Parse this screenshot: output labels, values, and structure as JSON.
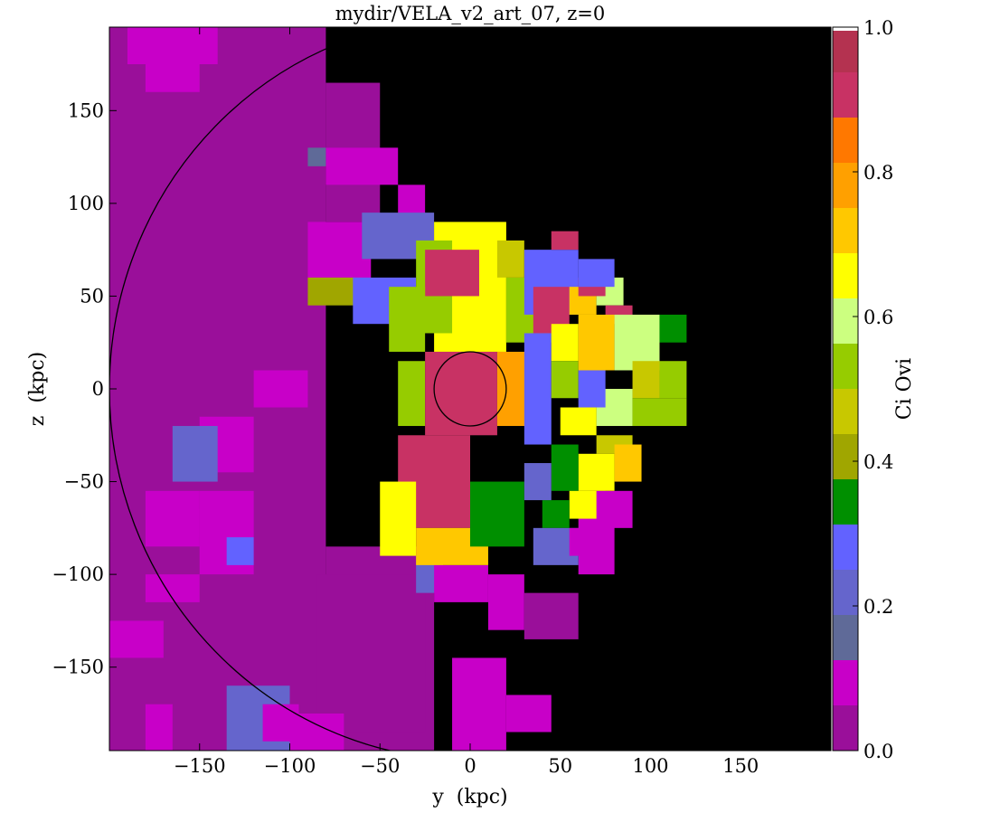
{
  "chart_data": {
    "type": "heatmap",
    "title": "mydir/VELA_v2_art_07, z=0",
    "xlabel": "y  (kpc)",
    "ylabel": "z  (kpc)",
    "xlim": [
      -200,
      200
    ],
    "ylim": [
      -195,
      195
    ],
    "xticks": [
      -150,
      -100,
      -50,
      0,
      50,
      100,
      150
    ],
    "yticks": [
      -150,
      -100,
      -50,
      0,
      50,
      100,
      150
    ],
    "grid": false,
    "colorbar": {
      "label": "Ci Ovi",
      "range": [
        0.0,
        1.0
      ],
      "ticks": [
        "0.0",
        "0.2",
        "0.4",
        "0.6",
        "0.8",
        "1.0"
      ],
      "tick_values": [
        0.0,
        0.2,
        0.4,
        0.6,
        0.8,
        1.0
      ],
      "bins": [
        {
          "lo": 0.0,
          "hi": 0.0625,
          "color": "#9a0f9a"
        },
        {
          "lo": 0.0625,
          "hi": 0.125,
          "color": "#c800c8"
        },
        {
          "lo": 0.125,
          "hi": 0.1875,
          "color": "#5f6a98"
        },
        {
          "lo": 0.1875,
          "hi": 0.25,
          "color": "#6565cc"
        },
        {
          "lo": 0.25,
          "hi": 0.3125,
          "color": "#6262ff"
        },
        {
          "lo": 0.3125,
          "hi": 0.375,
          "color": "#008f00"
        },
        {
          "lo": 0.375,
          "hi": 0.4375,
          "color": "#a0a600"
        },
        {
          "lo": 0.4375,
          "hi": 0.5,
          "color": "#c8c800"
        },
        {
          "lo": 0.5,
          "hi": 0.5625,
          "color": "#96cc00"
        },
        {
          "lo": 0.5625,
          "hi": 0.625,
          "color": "#ccff80"
        },
        {
          "lo": 0.625,
          "hi": 0.6875,
          "color": "#ffff00"
        },
        {
          "lo": 0.6875,
          "hi": 0.75,
          "color": "#ffc800"
        },
        {
          "lo": 0.75,
          "hi": 0.8125,
          "color": "#ffa000"
        },
        {
          "lo": 0.8125,
          "hi": 0.875,
          "color": "#ff7800"
        },
        {
          "lo": 0.875,
          "hi": 0.9375,
          "color": "#c83264"
        },
        {
          "lo": 0.9375,
          "hi": 0.995,
          "color": "#b43250"
        },
        {
          "lo": 0.995,
          "hi": 1.0,
          "color": "#ffffff"
        }
      ]
    },
    "background_color": "#000000",
    "circles": [
      {
        "center": [
          0,
          0
        ],
        "radius_kpc": 200,
        "color": "#000000"
      },
      {
        "center": [
          0,
          0
        ],
        "radius_kpc": 20,
        "color": "#000000"
      }
    ],
    "regions": [
      {
        "x0": -200,
        "x1": -80,
        "y0": -195,
        "y1": 195,
        "value": 0.03
      },
      {
        "x0": -80,
        "x1": -50,
        "y0": 90,
        "y1": 165,
        "value": 0.03
      },
      {
        "x0": -80,
        "x1": -20,
        "y0": -195,
        "y1": -85,
        "value": 0.03
      },
      {
        "x0": -85,
        "x1": -25,
        "y0": -185,
        "y1": -100,
        "value": 0.03
      },
      {
        "x0": -190,
        "x1": -140,
        "y0": 175,
        "y1": 195,
        "value": 0.09
      },
      {
        "x0": -180,
        "x1": -150,
        "y0": 160,
        "y1": 180,
        "value": 0.09
      },
      {
        "x0": -150,
        "x1": -120,
        "y0": -65,
        "y1": -80,
        "value": 0.09
      },
      {
        "x0": -80,
        "x1": -40,
        "y0": 110,
        "y1": 130,
        "value": 0.09
      },
      {
        "x0": -40,
        "x1": -25,
        "y0": 85,
        "y1": 110,
        "value": 0.09
      },
      {
        "x0": -90,
        "x1": -55,
        "y0": 50,
        "y1": 90,
        "value": 0.09
      },
      {
        "x0": -150,
        "x1": -120,
        "y0": -15,
        "y1": -45,
        "value": 0.09
      },
      {
        "x0": -150,
        "x1": -120,
        "y0": -55,
        "y1": -100,
        "value": 0.09
      },
      {
        "x0": -120,
        "x1": -90,
        "y0": -10,
        "y1": 10,
        "value": 0.09
      },
      {
        "x0": -180,
        "x1": -150,
        "y0": -100,
        "y1": -115,
        "value": 0.09
      },
      {
        "x0": -180,
        "x1": -165,
        "y0": -170,
        "y1": -195,
        "value": 0.09
      },
      {
        "x0": -180,
        "x1": -150,
        "y0": -55,
        "y1": -85,
        "value": 0.09
      },
      {
        "x0": -200,
        "x1": -170,
        "y0": -125,
        "y1": -145,
        "value": 0.09
      },
      {
        "x0": -165,
        "x1": -140,
        "y0": -20,
        "y1": -50,
        "value": 0.2
      },
      {
        "x0": -135,
        "x1": -120,
        "y0": -80,
        "y1": -95,
        "value": 0.28
      },
      {
        "x0": -135,
        "x1": -100,
        "y0": -160,
        "y1": -195,
        "value": 0.2
      },
      {
        "x0": -115,
        "x1": -95,
        "y0": -170,
        "y1": -190,
        "value": 0.09
      },
      {
        "x0": -100,
        "x1": -70,
        "y0": -175,
        "y1": -195,
        "value": 0.09
      },
      {
        "x0": -90,
        "x1": -80,
        "y0": 120,
        "y1": 130,
        "value": 0.16
      },
      {
        "x0": -50,
        "x1": -20,
        "y0": 80,
        "y1": 90,
        "value": 0.16
      },
      {
        "x0": -90,
        "x1": -60,
        "y0": 45,
        "y1": 60,
        "value": 0.41
      },
      {
        "x0": -60,
        "x1": -20,
        "y0": 70,
        "y1": 95,
        "value": 0.24
      },
      {
        "x0": -65,
        "x1": -30,
        "y0": 35,
        "y1": 60,
        "value": 0.28
      },
      {
        "x0": -30,
        "x1": -15,
        "y0": -90,
        "y1": -110,
        "value": 0.2
      },
      {
        "x0": -20,
        "x1": 10,
        "y0": -95,
        "y1": -115,
        "value": 0.09
      },
      {
        "x0": 10,
        "x1": 30,
        "y0": -100,
        "y1": -130,
        "value": 0.09
      },
      {
        "x0": 30,
        "x1": 60,
        "y0": -110,
        "y1": -135,
        "value": 0.03
      },
      {
        "x0": 60,
        "x1": 80,
        "y0": -60,
        "y1": -100,
        "value": 0.09
      },
      {
        "x0": -10,
        "x1": 20,
        "y0": -145,
        "y1": -195,
        "value": 0.09
      },
      {
        "x0": 20,
        "x1": 45,
        "y0": -165,
        "y1": -185,
        "value": 0.09
      },
      {
        "x0": -20,
        "x1": 20,
        "y0": 20,
        "y1": 90,
        "value": 0.66
      },
      {
        "x0": -30,
        "x1": -10,
        "y0": 30,
        "y1": 80,
        "value": 0.55
      },
      {
        "x0": -25,
        "x1": 5,
        "y0": 50,
        "y1": 75,
        "value": 0.92
      },
      {
        "x0": -45,
        "x1": -25,
        "y0": 20,
        "y1": 55,
        "value": 0.5
      },
      {
        "x0": -40,
        "x1": -25,
        "y0": -20,
        "y1": 15,
        "value": 0.55
      },
      {
        "x0": -25,
        "x1": 15,
        "y0": -25,
        "y1": 20,
        "value": 0.9
      },
      {
        "x0": -40,
        "x1": 0,
        "y0": -25,
        "y1": -75,
        "value": 0.9
      },
      {
        "x0": -50,
        "x1": -30,
        "y0": -50,
        "y1": -90,
        "value": 0.66
      },
      {
        "x0": -30,
        "x1": 10,
        "y0": -75,
        "y1": -95,
        "value": 0.7
      },
      {
        "x0": 0,
        "x1": 30,
        "y0": -50,
        "y1": -85,
        "value": 0.36
      },
      {
        "x0": 15,
        "x1": 35,
        "y0": -20,
        "y1": 20,
        "value": 0.8
      },
      {
        "x0": 20,
        "x1": 45,
        "y0": 25,
        "y1": 60,
        "value": 0.55
      },
      {
        "x0": 15,
        "x1": 30,
        "y0": 60,
        "y1": 80,
        "value": 0.45
      },
      {
        "x0": 30,
        "x1": 60,
        "y0": 40,
        "y1": 75,
        "value": 0.3
      },
      {
        "x0": 45,
        "x1": 60,
        "y0": 75,
        "y1": 85,
        "value": 0.92
      },
      {
        "x0": 35,
        "x1": 55,
        "y0": 30,
        "y1": 55,
        "value": 0.92
      },
      {
        "x0": 55,
        "x1": 70,
        "y0": 40,
        "y1": 55,
        "value": 0.72
      },
      {
        "x0": 70,
        "x1": 85,
        "y0": 45,
        "y1": 60,
        "value": 0.62
      },
      {
        "x0": 60,
        "x1": 75,
        "y0": 50,
        "y1": 60,
        "value": 0.92
      },
      {
        "x0": 75,
        "x1": 90,
        "y0": 35,
        "y1": 45,
        "value": 0.92
      },
      {
        "x0": 60,
        "x1": 80,
        "y0": 55,
        "y1": 70,
        "value": 0.28
      },
      {
        "x0": 30,
        "x1": 45,
        "y0": -30,
        "y1": 30,
        "value": 0.28
      },
      {
        "x0": 45,
        "x1": 60,
        "y0": 15,
        "y1": 35,
        "value": 0.66
      },
      {
        "x0": 45,
        "x1": 60,
        "y0": -5,
        "y1": 15,
        "value": 0.5
      },
      {
        "x0": 60,
        "x1": 80,
        "y0": 10,
        "y1": 40,
        "value": 0.7
      },
      {
        "x0": 80,
        "x1": 105,
        "y0": 10,
        "y1": 40,
        "value": 0.6
      },
      {
        "x0": 105,
        "x1": 120,
        "y0": 25,
        "y1": 40,
        "value": 0.36
      },
      {
        "x0": 105,
        "x1": 120,
        "y0": -5,
        "y1": 15,
        "value": 0.55
      },
      {
        "x0": 90,
        "x1": 105,
        "y0": -5,
        "y1": 15,
        "value": 0.44
      },
      {
        "x0": 70,
        "x1": 90,
        "y0": -20,
        "y1": 0,
        "value": 0.6
      },
      {
        "x0": 90,
        "x1": 120,
        "y0": -20,
        "y1": -5,
        "value": 0.5
      },
      {
        "x0": 60,
        "x1": 75,
        "y0": -10,
        "y1": 10,
        "value": 0.28
      },
      {
        "x0": 50,
        "x1": 70,
        "y0": -25,
        "y1": -10,
        "value": 0.66
      },
      {
        "x0": 70,
        "x1": 90,
        "y0": -25,
        "y1": -35,
        "value": 0.44
      },
      {
        "x0": 60,
        "x1": 80,
        "y0": -35,
        "y1": -55,
        "value": 0.66
      },
      {
        "x0": 80,
        "x1": 95,
        "y0": -30,
        "y1": -50,
        "value": 0.72
      },
      {
        "x0": 45,
        "x1": 60,
        "y0": -30,
        "y1": -55,
        "value": 0.36
      },
      {
        "x0": 55,
        "x1": 75,
        "y0": -55,
        "y1": -70,
        "value": 0.66
      },
      {
        "x0": 40,
        "x1": 55,
        "y0": -60,
        "y1": -75,
        "value": 0.36
      },
      {
        "x0": 30,
        "x1": 45,
        "y0": -40,
        "y1": -60,
        "value": 0.2
      },
      {
        "x0": 35,
        "x1": 60,
        "y0": -75,
        "y1": -95,
        "value": 0.2
      },
      {
        "x0": 55,
        "x1": 70,
        "y0": -75,
        "y1": -90,
        "value": 0.09
      },
      {
        "x0": 70,
        "x1": 90,
        "y0": -55,
        "y1": -75,
        "value": 0.09
      }
    ]
  }
}
